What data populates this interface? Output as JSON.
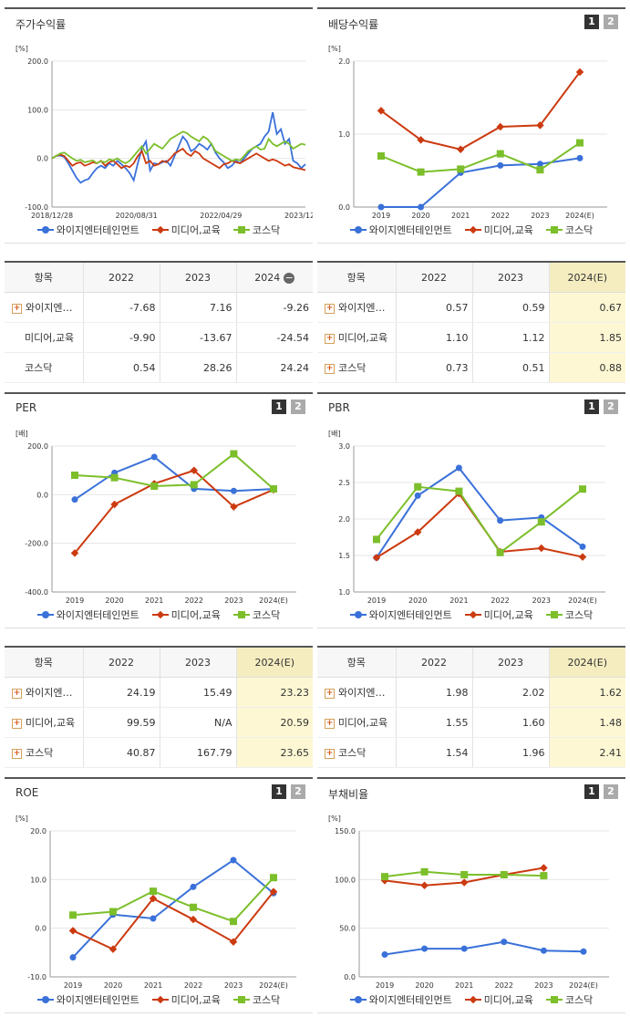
{
  "colors": {
    "s1": "#3a71d9",
    "s2": "#cc3a10",
    "s3": "#7cbf2b"
  },
  "legend": [
    "와이지엔터테인먼트",
    "미디어,교육",
    "코스닥"
  ],
  "chart_data": [
    {
      "id": "price",
      "type": "line",
      "title": "주가수익률",
      "unit": "[%]",
      "ylim": [
        -100,
        200
      ],
      "yticks": [
        "200.0",
        "100.0",
        "0.0",
        "-100.0"
      ],
      "xticks": [
        "2018/12/28",
        "2020/08/31",
        "2022/04/29",
        "2023/12/28"
      ],
      "x_start": "2018/12/28",
      "x_end": "2024/02",
      "series": [
        {
          "name": "와이지엔터테인먼트",
          "values": [
            0,
            5,
            6,
            3,
            -10,
            -25,
            -40,
            -50,
            -45,
            -42,
            -30,
            -20,
            -15,
            -20,
            -10,
            -15,
            -5,
            -12,
            -20,
            -30,
            -45,
            -10,
            20,
            35,
            -25,
            -10,
            -12,
            -8,
            -5,
            -15,
            5,
            25,
            45,
            35,
            15,
            20,
            30,
            25,
            18,
            30,
            12,
            0,
            -8,
            -20,
            -15,
            -5,
            -10,
            0,
            10,
            20,
            25,
            30,
            45,
            55,
            95,
            50,
            60,
            30,
            40,
            -5,
            -10,
            -20,
            -12
          ]
        },
        {
          "name": "미디어,교육",
          "values": [
            0,
            5,
            8,
            5,
            -5,
            -15,
            -10,
            -8,
            -15,
            -12,
            -8,
            -10,
            -5,
            -15,
            -8,
            -5,
            -12,
            -20,
            -15,
            -18,
            -10,
            5,
            15,
            -10,
            -5,
            -15,
            -12,
            -5,
            -8,
            0,
            10,
            15,
            20,
            10,
            5,
            15,
            10,
            0,
            -5,
            -10,
            -15,
            -20,
            -12,
            -10,
            -5,
            -8,
            -10,
            -5,
            0,
            5,
            10,
            5,
            0,
            -5,
            -2,
            -5,
            -10,
            -15,
            -12,
            -18,
            -20,
            -22,
            -24
          ]
        },
        {
          "name": "코스닥",
          "values": [
            0,
            5,
            10,
            12,
            6,
            0,
            -5,
            -3,
            -8,
            -6,
            -4,
            -10,
            -6,
            -8,
            -2,
            -4,
            0,
            -6,
            -10,
            -5,
            5,
            15,
            25,
            10,
            20,
            30,
            25,
            20,
            30,
            40,
            45,
            50,
            55,
            52,
            45,
            40,
            35,
            45,
            40,
            30,
            15,
            10,
            5,
            0,
            -5,
            -2,
            -4,
            5,
            15,
            20,
            25,
            18,
            20,
            40,
            30,
            25,
            30,
            35,
            30,
            20,
            25,
            30,
            28
          ]
        }
      ]
    },
    {
      "id": "dividend",
      "type": "line",
      "title": "배당수익률",
      "unit": "[%]",
      "ylim": [
        0,
        2
      ],
      "yticks": [
        "2.0",
        "1.0",
        "0.0"
      ],
      "categories": [
        "2019",
        "2020",
        "2021",
        "2022",
        "2023",
        "2024(E)"
      ],
      "series": [
        {
          "name": "와이지엔터테인먼트",
          "values": [
            0.0,
            0.0,
            0.47,
            0.57,
            0.59,
            0.67
          ]
        },
        {
          "name": "미디어,교육",
          "values": [
            1.32,
            0.92,
            0.79,
            1.1,
            1.12,
            1.85
          ]
        },
        {
          "name": "코스닥",
          "values": [
            0.7,
            0.48,
            0.52,
            0.73,
            0.51,
            0.88
          ]
        }
      ]
    },
    {
      "id": "per",
      "type": "line",
      "title": "PER",
      "unit": "[배]",
      "ylim": [
        -400,
        200
      ],
      "yticks": [
        "200.0",
        "0.0",
        "-200.0",
        "-400.0"
      ],
      "categories": [
        "2019",
        "2020",
        "2021",
        "2022",
        "2023",
        "2024(E)"
      ],
      "series": [
        {
          "name": "와이지엔터테인먼트",
          "values": [
            -20,
            90,
            155,
            24.19,
            15.49,
            23.23
          ]
        },
        {
          "name": "미디어,교육",
          "values": [
            -240,
            -40,
            45,
            99.59,
            -50,
            20.59
          ]
        },
        {
          "name": "코스닥",
          "values": [
            80,
            70,
            35,
            40.87,
            167.79,
            23.65
          ]
        }
      ]
    },
    {
      "id": "pbr",
      "type": "line",
      "title": "PBR",
      "unit": "[배]",
      "ylim": [
        1.0,
        3.0
      ],
      "yticks": [
        "3.0",
        "2.5",
        "2.0",
        "1.5",
        "1.0"
      ],
      "categories": [
        "2019",
        "2020",
        "2021",
        "2022",
        "2023",
        "2024(E)"
      ],
      "series": [
        {
          "name": "와이지엔터테인먼트",
          "values": [
            1.47,
            2.32,
            2.7,
            1.98,
            2.02,
            1.62
          ]
        },
        {
          "name": "미디어,교육",
          "values": [
            1.47,
            1.82,
            2.35,
            1.55,
            1.6,
            1.48
          ]
        },
        {
          "name": "코스닥",
          "values": [
            1.72,
            2.44,
            2.38,
            1.54,
            1.96,
            2.41
          ]
        }
      ]
    },
    {
      "id": "roe",
      "type": "line",
      "title": "ROE",
      "unit": "[%]",
      "ylim": [
        -10,
        20
      ],
      "yticks": [
        "20.0",
        "10.0",
        "0.0",
        "-10.0"
      ],
      "categories": [
        "2019",
        "2020",
        "2021",
        "2022",
        "2023",
        "2024(E)"
      ],
      "series": [
        {
          "name": "와이지엔터테인먼트",
          "values": [
            -6.0,
            2.8,
            2.0,
            8.5,
            14.0,
            7.2
          ]
        },
        {
          "name": "미디어,교육",
          "values": [
            -0.5,
            -4.3,
            6.1,
            1.8,
            -2.8,
            7.5
          ]
        },
        {
          "name": "코스닥",
          "values": [
            2.7,
            3.4,
            7.6,
            4.3,
            1.4,
            10.4
          ]
        }
      ]
    },
    {
      "id": "debt",
      "type": "line",
      "title": "부채비율",
      "unit": "[%]",
      "ylim": [
        0,
        150
      ],
      "yticks": [
        "150.0",
        "100.0",
        "50.0",
        "0.0"
      ],
      "categories": [
        "2019",
        "2020",
        "2021",
        "2022",
        "2023",
        "2024(E)"
      ],
      "series": [
        {
          "name": "와이지엔터테인먼트",
          "values": [
            23,
            29,
            29,
            36,
            27,
            26
          ]
        },
        {
          "name": "미디어,교육",
          "values": [
            99,
            94,
            97,
            105,
            112,
            null
          ]
        },
        {
          "name": "코스닥",
          "values": [
            103,
            108,
            105,
            105,
            104,
            null
          ]
        }
      ]
    }
  ],
  "tables": {
    "price": {
      "header": [
        "항목",
        "2022",
        "2023",
        "2024"
      ],
      "rows": [
        {
          "name": "와이지엔…",
          "plus": true,
          "values": [
            "-7.68",
            "7.16",
            "-9.26"
          ]
        },
        {
          "name": "미디어,교육",
          "plus": false,
          "values": [
            "-9.90",
            "-13.67",
            "-24.54"
          ]
        },
        {
          "name": "코스닥",
          "plus": false,
          "values": [
            "0.54",
            "28.26",
            "24.24"
          ]
        }
      ]
    },
    "dividend": {
      "header": [
        "항목",
        "2022",
        "2023",
        "2024(E)"
      ],
      "rows": [
        {
          "name": "와이지엔…",
          "plus": true,
          "values": [
            "0.57",
            "0.59",
            "0.67"
          ]
        },
        {
          "name": "미디어,교육",
          "plus": true,
          "values": [
            "1.10",
            "1.12",
            "1.85"
          ]
        },
        {
          "name": "코스닥",
          "plus": true,
          "values": [
            "0.73",
            "0.51",
            "0.88"
          ]
        }
      ]
    },
    "per": {
      "header": [
        "항목",
        "2022",
        "2023",
        "2024(E)"
      ],
      "rows": [
        {
          "name": "와이지엔…",
          "plus": true,
          "values": [
            "24.19",
            "15.49",
            "23.23"
          ]
        },
        {
          "name": "미디어,교육",
          "plus": true,
          "values": [
            "99.59",
            "N/A",
            "20.59"
          ]
        },
        {
          "name": "코스닥",
          "plus": true,
          "values": [
            "40.87",
            "167.79",
            "23.65"
          ]
        }
      ]
    },
    "pbr": {
      "header": [
        "항목",
        "2022",
        "2023",
        "2024(E)"
      ],
      "rows": [
        {
          "name": "와이지엔…",
          "plus": true,
          "values": [
            "1.98",
            "2.02",
            "1.62"
          ]
        },
        {
          "name": "미디어,교육",
          "plus": true,
          "values": [
            "1.55",
            "1.60",
            "1.48"
          ]
        },
        {
          "name": "코스닥",
          "plus": true,
          "values": [
            "1.54",
            "1.96",
            "2.41"
          ]
        }
      ]
    }
  },
  "pager": [
    "1",
    "2"
  ]
}
